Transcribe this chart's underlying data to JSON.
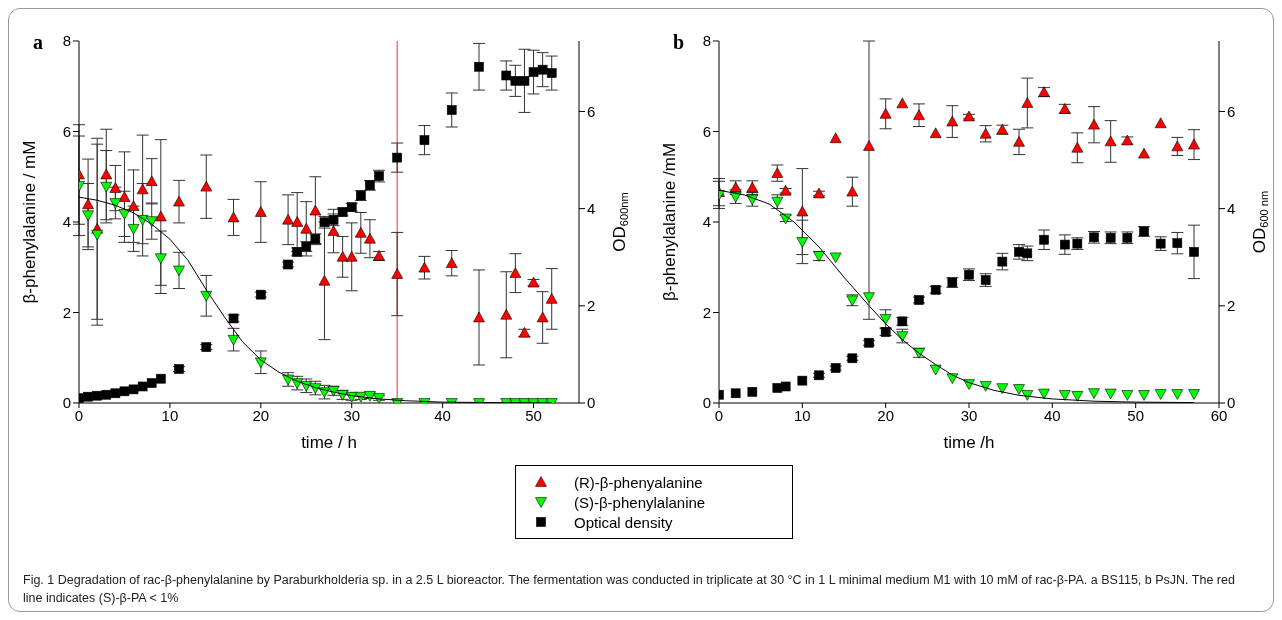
{
  "chart_data": [
    {
      "type": "scatter",
      "title": "a",
      "xlabel": "time / h",
      "ylabel": "β-phenylalanine / mM",
      "y2label": "OD$_{600nm}$",
      "xlim": [
        0,
        55
      ],
      "xticks": [
        0,
        10,
        20,
        30,
        40,
        50
      ],
      "ylim": [
        0,
        8
      ],
      "yticks": [
        0,
        2,
        4,
        6,
        8
      ],
      "y2lim": [
        0,
        7.45
      ],
      "y2ticks": [
        0,
        2,
        4,
        6
      ],
      "legend": "bottom",
      "ref_lines": [
        {
          "axis": "x",
          "value": 35,
          "color": "#f06060"
        }
      ],
      "annotations": [
        "Fig. 1 Degradation of rac-β-phenylalanine by Paraburkholderia sp. in a 2.5 L bioreactor. The fermentation was conducted in triplicate at 30 °C in 1 L minimal medium M1 with 10 mM of rac-β-PA. a BS115, b PsJN. The red line indicates (S)-β-PA < 1%"
      ],
      "series": [
        {
          "name": "(R)-β-phenyalanine",
          "color": "#ff0000",
          "marker": "triangle",
          "x": [
            0,
            1,
            2,
            3,
            4,
            5,
            6,
            7,
            8,
            9,
            11,
            14,
            17,
            20,
            23,
            24,
            25,
            26,
            27,
            28,
            29,
            30,
            31,
            32,
            33,
            35,
            38,
            41,
            44,
            47,
            48,
            49,
            50,
            51,
            52
          ],
          "values": [
            5.05,
            4.39,
            3.85,
            5.05,
            4.75,
            4.55,
            4.35,
            4.72,
            4.9,
            4.12,
            4.45,
            4.78,
            4.1,
            4.22,
            4.05,
            4.0,
            3.85,
            4.25,
            2.7,
            3.8,
            3.23,
            3.23,
            3.76,
            3.63,
            3.25,
            2.85,
            2.99,
            3.09,
            1.89,
            1.95,
            2.87,
            1.55,
            2.66,
            1.89,
            2.3
          ],
          "errors": [
            1.1,
            1.0,
            2.0,
            1.0,
            0.5,
            1.0,
            0.8,
            1.2,
            0.5,
            1.7,
            0.47,
            0.7,
            0.4,
            0.67,
            0.55,
            0.65,
            0.6,
            0.75,
            1.3,
            0.48,
            0.45,
            0.75,
            0.45,
            0.42,
            0.1,
            0.92,
            0.25,
            0.28,
            1.05,
            0.95,
            0.43,
            0.08,
            0.07,
            0.57,
            0.67
          ]
        },
        {
          "name": "(S)-β-phenylalanine",
          "color": "#00ff00",
          "marker": "triangle-down",
          "x": [
            0,
            1,
            2,
            3,
            4,
            5,
            6,
            7,
            8,
            9,
            11,
            14,
            17,
            20,
            23,
            24,
            25,
            26,
            27,
            28,
            29,
            30,
            31,
            32,
            33,
            35,
            38,
            41,
            44,
            47,
            48,
            49,
            50,
            51,
            52
          ],
          "values": [
            4.8,
            4.15,
            3.72,
            4.78,
            4.42,
            4.18,
            3.85,
            4.05,
            4.02,
            3.2,
            2.93,
            2.37,
            1.4,
            0.9,
            0.52,
            0.44,
            0.38,
            0.33,
            0.24,
            0.27,
            0.18,
            0.14,
            0.14,
            0.16,
            0.11,
            0,
            0,
            0,
            0,
            0,
            0,
            0,
            0,
            0,
            0
          ],
          "errors": [
            1.1,
            0.7,
            2.0,
            0.8,
            0.35,
            0.5,
            0.5,
            0.8,
            0.4,
            0.6,
            0.4,
            0.45,
            0.25,
            0.25,
            0.15,
            0.15,
            0.15,
            0.15,
            0.15,
            0.1,
            0.1,
            0.08,
            0.06,
            0.06,
            0.05,
            null,
            null,
            null,
            null,
            null,
            null,
            null,
            null,
            null,
            null
          ]
        },
        {
          "name": "Optical density",
          "color": "#000000",
          "marker": "square",
          "axis": "y2",
          "x": [
            0,
            1,
            2,
            3,
            4,
            5,
            6,
            7,
            8,
            9,
            11,
            14,
            17,
            20,
            23,
            24,
            25,
            26,
            27,
            28,
            29,
            30,
            31,
            32,
            33,
            35,
            38,
            41,
            44,
            47,
            48,
            49,
            50,
            51,
            52
          ],
          "values": [
            0.1,
            0.13,
            0.15,
            0.17,
            0.2,
            0.24,
            0.28,
            0.34,
            0.41,
            0.5,
            0.7,
            1.15,
            1.74,
            2.23,
            2.85,
            3.11,
            3.22,
            3.38,
            3.72,
            3.77,
            3.93,
            4.03,
            4.27,
            4.48,
            4.67,
            5.05,
            5.41,
            6.03,
            6.92,
            6.74,
            6.63,
            6.63,
            6.81,
            6.86,
            6.79
          ],
          "errors": [
            null,
            null,
            null,
            null,
            null,
            null,
            null,
            null,
            null,
            null,
            0.05,
            0.05,
            0.07,
            0.05,
            0.05,
            0.08,
            0.1,
            0.1,
            0.12,
            0.12,
            0.08,
            0.08,
            0.1,
            0.1,
            0.12,
            0.3,
            0.3,
            0.35,
            0.48,
            0.3,
            0.32,
            0.65,
            0.45,
            0.35,
            0.35
          ]
        },
        {
          "type": "line",
          "color": "#000000",
          "marker": "none",
          "x": [
            0,
            2,
            4,
            6,
            8,
            10,
            12,
            14,
            16,
            18,
            20,
            22,
            24,
            26,
            28,
            30,
            33,
            36,
            40,
            45,
            52
          ],
          "values": [
            4.55,
            4.48,
            4.37,
            4.2,
            3.95,
            3.62,
            3.15,
            2.5,
            1.9,
            1.35,
            0.95,
            0.68,
            0.48,
            0.34,
            0.24,
            0.16,
            0.09,
            0.05,
            0.02,
            0.01,
            0
          ]
        }
      ]
    },
    {
      "type": "scatter",
      "title": "b",
      "xlabel": "time /h",
      "ylabel": "β-phenylalanine /mM",
      "y2label": "OD$_{600 nm}$",
      "xlim": [
        0,
        60
      ],
      "xticks": [
        0,
        10,
        20,
        30,
        40,
        50,
        60
      ],
      "ylim": [
        0,
        8
      ],
      "yticks": [
        0,
        2,
        4,
        6,
        8
      ],
      "y2lim": [
        0,
        7.45
      ],
      "y2ticks": [
        0,
        2,
        4,
        6
      ],
      "legend": "bottom",
      "series": [
        {
          "name": "(R)-β-phenyalanine",
          "color": "#ff0000",
          "marker": "triangle",
          "x": [
            0,
            2,
            4,
            7,
            8,
            10,
            12,
            14,
            16,
            18,
            20,
            22,
            24,
            26,
            28,
            30,
            32,
            34,
            36,
            37,
            39,
            41.5,
            43,
            45,
            47,
            49,
            51,
            53,
            55,
            57
          ],
          "values": [
            4.66,
            4.76,
            4.76,
            5.08,
            4.69,
            4.23,
            4.63,
            5.85,
            4.67,
            5.68,
            6.39,
            6.62,
            6.36,
            5.96,
            6.22,
            6.33,
            5.95,
            6.04,
            5.77,
            6.63,
            6.87,
            6.5,
            5.64,
            6.15,
            5.78,
            5.8,
            5.51,
            6.18,
            5.67,
            5.71
          ],
          "errors": [
            0.3,
            0.15,
            0.15,
            0.18,
            0.05,
            0.95,
            0.05,
            null,
            0.32,
            [
              1.85,
              8
            ],
            0.33,
            null,
            0.25,
            null,
            0.35,
            0.05,
            0.18,
            0.1,
            0.28,
            0.55,
            0.1,
            0.1,
            0.33,
            0.4,
            0.46,
            0.08,
            null,
            null,
            0.2,
            0.33
          ]
        },
        {
          "name": "(S)-β-phenylalanine",
          "color": "#00ff00",
          "marker": "triangle-down",
          "x": [
            0,
            2,
            4,
            7,
            8,
            10,
            12,
            14,
            16,
            18,
            20,
            22,
            24,
            26,
            28,
            30,
            32,
            34,
            36,
            37,
            39,
            41.5,
            43,
            45,
            47,
            49,
            51,
            53,
            55,
            57
          ],
          "values": [
            4.6,
            4.56,
            4.5,
            4.45,
            4.08,
            3.56,
            3.25,
            3.22,
            2.27,
            2.34,
            1.86,
            1.48,
            1.11,
            0.74,
            0.55,
            0.42,
            0.38,
            0.33,
            0.31,
            0.18,
            0.21,
            0.18,
            0.16,
            0.22,
            0.21,
            0.18,
            0.18,
            0.2,
            0.2,
            0.2
          ],
          "errors": [
            0.3,
            0.15,
            0.15,
            0.15,
            0.07,
            0.48,
            0.1,
            null,
            0.12,
            null,
            0.2,
            0.15,
            0.1,
            null,
            null,
            null,
            null,
            null,
            null,
            null,
            null,
            null,
            null,
            null,
            null,
            null,
            null,
            null,
            null,
            null
          ]
        },
        {
          "name": "Optical density",
          "color": "#000000",
          "marker": "square",
          "axis": "y2",
          "x": [
            0,
            2,
            4,
            7,
            8,
            10,
            12,
            14,
            16,
            18,
            20,
            22,
            24,
            26,
            28,
            30,
            32,
            34,
            36,
            37,
            39,
            41.5,
            43,
            45,
            47,
            49,
            51,
            53,
            55,
            57
          ],
          "values": [
            0.17,
            0.2,
            0.23,
            0.31,
            0.34,
            0.46,
            0.57,
            0.72,
            0.92,
            1.24,
            1.46,
            1.68,
            2.12,
            2.33,
            2.48,
            2.64,
            2.53,
            2.91,
            3.11,
            3.08,
            3.36,
            3.26,
            3.28,
            3.41,
            3.4,
            3.4,
            3.53,
            3.28,
            3.29,
            3.11
          ],
          "errors": [
            null,
            null,
            null,
            null,
            null,
            null,
            0.04,
            0.04,
            0.04,
            0.05,
            0.07,
            0.08,
            0.06,
            0.07,
            0.1,
            0.12,
            0.13,
            0.17,
            0.15,
            0.15,
            0.2,
            0.2,
            0.12,
            0.12,
            0.12,
            0.12,
            0.1,
            0.14,
            0.22,
            0.55
          ]
        },
        {
          "type": "line",
          "color": "#000000",
          "marker": "none",
          "x": [
            0,
            3,
            6,
            9,
            12,
            15,
            18,
            20,
            22,
            24,
            26,
            28,
            30,
            33,
            36,
            40,
            45,
            50,
            57
          ],
          "values": [
            4.7,
            4.6,
            4.4,
            4.0,
            3.45,
            2.78,
            2.15,
            1.75,
            1.4,
            1.1,
            0.85,
            0.62,
            0.45,
            0.28,
            0.17,
            0.09,
            0.04,
            0.02,
            0.01
          ]
        }
      ]
    }
  ]
}
